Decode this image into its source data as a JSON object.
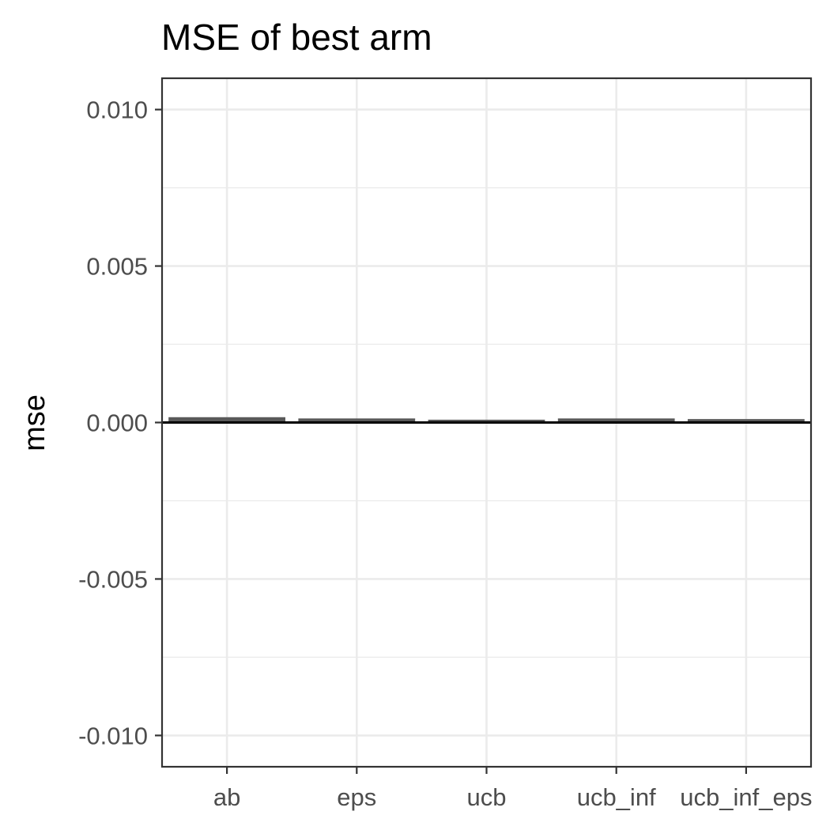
{
  "chart_data": {
    "type": "bar",
    "title": "MSE of best arm",
    "xlabel": "",
    "ylabel": "mse",
    "categories": [
      "ab",
      "eps",
      "ucb",
      "ucb_inf",
      "ucb_inf_eps"
    ],
    "values": [
      0.00017,
      0.00013,
      9e-05,
      0.00013,
      0.00011
    ],
    "ylim": [
      -0.011,
      0.011
    ],
    "yticks": [
      -0.01,
      -0.005,
      0.0,
      0.005,
      0.01
    ],
    "ytick_labels": [
      "-0.010",
      "-0.005",
      "0.000",
      "0.005",
      "0.010"
    ],
    "grid": true,
    "hline": 0,
    "colors": {
      "bar": "#595959",
      "grid": "#ebebeb",
      "frame": "#333333",
      "hline": "#000000"
    }
  }
}
